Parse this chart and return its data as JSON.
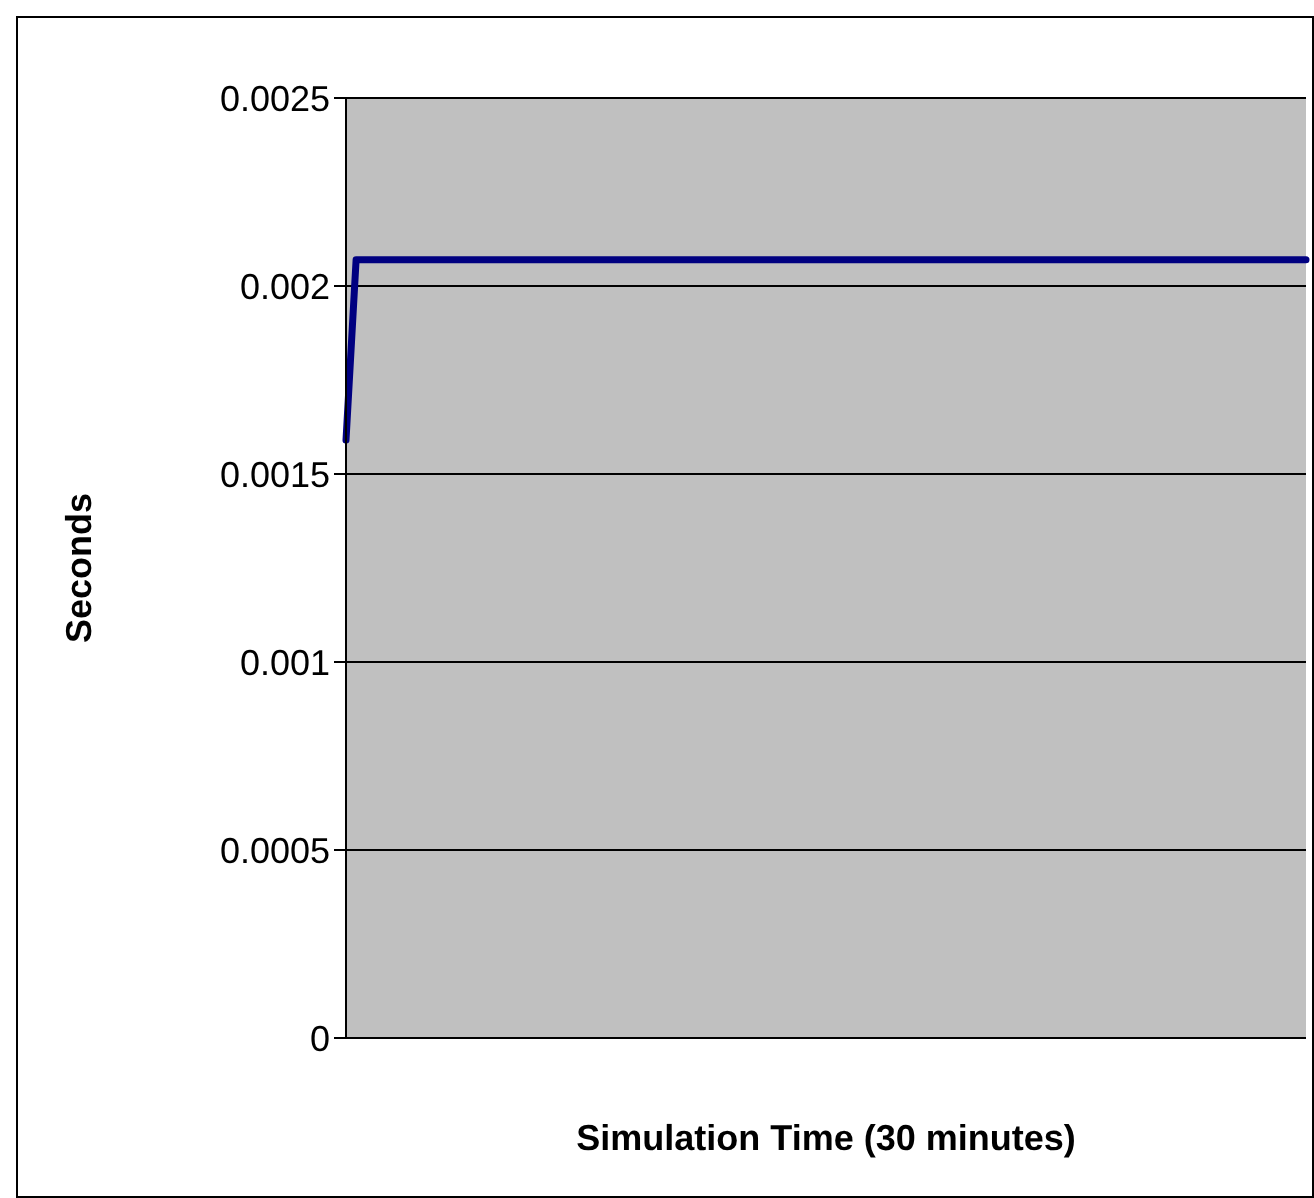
{
  "chart_data": {
    "type": "line",
    "xlabel": "Simulation Time (30 minutes)",
    "ylabel": "Seconds",
    "categories": [
      null,
      null,
      null,
      null,
      null,
      null,
      null,
      null,
      null,
      null,
      null,
      null,
      null,
      null,
      null,
      null,
      null,
      null,
      null,
      null,
      null,
      null,
      null,
      null,
      null,
      null,
      null,
      null,
      null,
      null,
      null,
      null,
      null,
      null,
      null,
      null,
      null,
      null,
      null,
      null,
      null,
      null,
      null,
      null,
      null,
      null,
      null,
      null,
      null,
      null,
      null,
      null,
      null,
      null,
      null,
      null,
      null,
      null,
      null,
      null,
      null,
      null,
      null,
      null,
      null,
      null,
      null,
      null,
      null,
      null,
      null,
      null,
      null,
      null,
      null,
      null,
      null,
      null,
      null,
      null,
      null,
      null,
      null,
      null,
      null,
      null,
      null,
      null,
      null,
      null,
      null,
      null,
      null,
      null,
      null,
      null
    ],
    "series": [
      {
        "color": "#000080",
        "values": [
          0.00159,
          0.00207,
          0.00207,
          0.00207,
          0.00207,
          0.00207,
          0.00207,
          0.00207,
          0.00207,
          0.00207,
          0.00207,
          0.00207,
          0.00207,
          0.00207,
          0.00207,
          0.00207,
          0.00207,
          0.00207,
          0.00207,
          0.00207,
          0.00207,
          0.00207,
          0.00207,
          0.00207,
          0.00207,
          0.00207,
          0.00207,
          0.00207,
          0.00207,
          0.00207,
          0.00207,
          0.00207,
          0.00207,
          0.00207,
          0.00207,
          0.00207,
          0.00207,
          0.00207,
          0.00207,
          0.00207,
          0.00207,
          0.00207,
          0.00207,
          0.00207,
          0.00207,
          0.00207,
          0.00207,
          0.00207,
          0.00207,
          0.00207,
          0.00207,
          0.00207,
          0.00207,
          0.00207,
          0.00207,
          0.00207,
          0.00207,
          0.00207,
          0.00207,
          0.00207,
          0.00207,
          0.00207,
          0.00207,
          0.00207,
          0.00207,
          0.00207,
          0.00207,
          0.00207,
          0.00207,
          0.00207,
          0.00207,
          0.00207,
          0.00207,
          0.00207,
          0.00207,
          0.00207,
          0.00207,
          0.00207,
          0.00207,
          0.00207,
          0.00207,
          0.00207,
          0.00207,
          0.00207,
          0.00207,
          0.00207,
          0.00207,
          0.00207,
          0.00207,
          0.00207,
          0.00207,
          0.00207,
          0.00207,
          0.00207,
          0.00207,
          0.00207
        ]
      }
    ],
    "ylim": [
      0,
      0.0025
    ],
    "yticks": [
      0,
      0.0005,
      0.001,
      0.0015,
      0.002,
      0.0025
    ],
    "grid": "y"
  }
}
